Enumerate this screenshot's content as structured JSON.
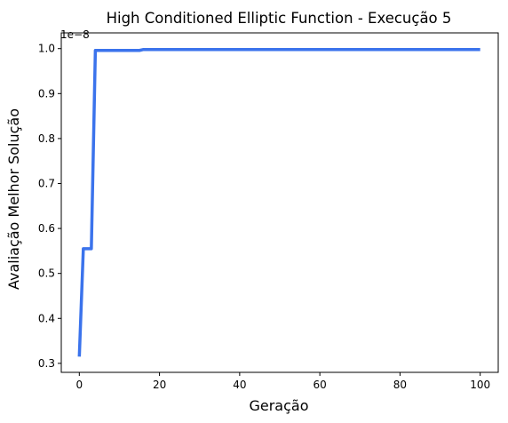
{
  "chart_data": {
    "type": "line",
    "title": "High Conditioned Elliptic Function - Execução 5",
    "xlabel": "Geração",
    "ylabel": "Avaliação Melhor Solução",
    "y_offset_label": "1e−8",
    "xlim": [
      -4.5,
      104.5
    ],
    "ylim": [
      0.28,
      1.035
    ],
    "x_ticks": [
      0,
      20,
      40,
      60,
      80,
      100
    ],
    "y_ticks": [
      0.3,
      0.4,
      0.5,
      0.6,
      0.7,
      0.8,
      0.9,
      1.0
    ],
    "x_tick_labels": [
      "0",
      "20",
      "40",
      "60",
      "80",
      "100"
    ],
    "y_tick_labels": [
      "0.3",
      "0.4",
      "0.5",
      "0.6",
      "0.7",
      "0.8",
      "0.9",
      "1.0"
    ],
    "grid": false,
    "legend": "none",
    "series": [
      {
        "color": "#3b73ec",
        "x": [
          0,
          1,
          2,
          3,
          4,
          5,
          10,
          15,
          16,
          20,
          40,
          60,
          80,
          100
        ],
        "values": [
          0.315,
          0.555,
          0.555,
          0.555,
          0.996,
          0.996,
          0.996,
          0.996,
          0.998,
          0.998,
          0.998,
          0.998,
          0.998,
          0.998
        ]
      }
    ]
  }
}
